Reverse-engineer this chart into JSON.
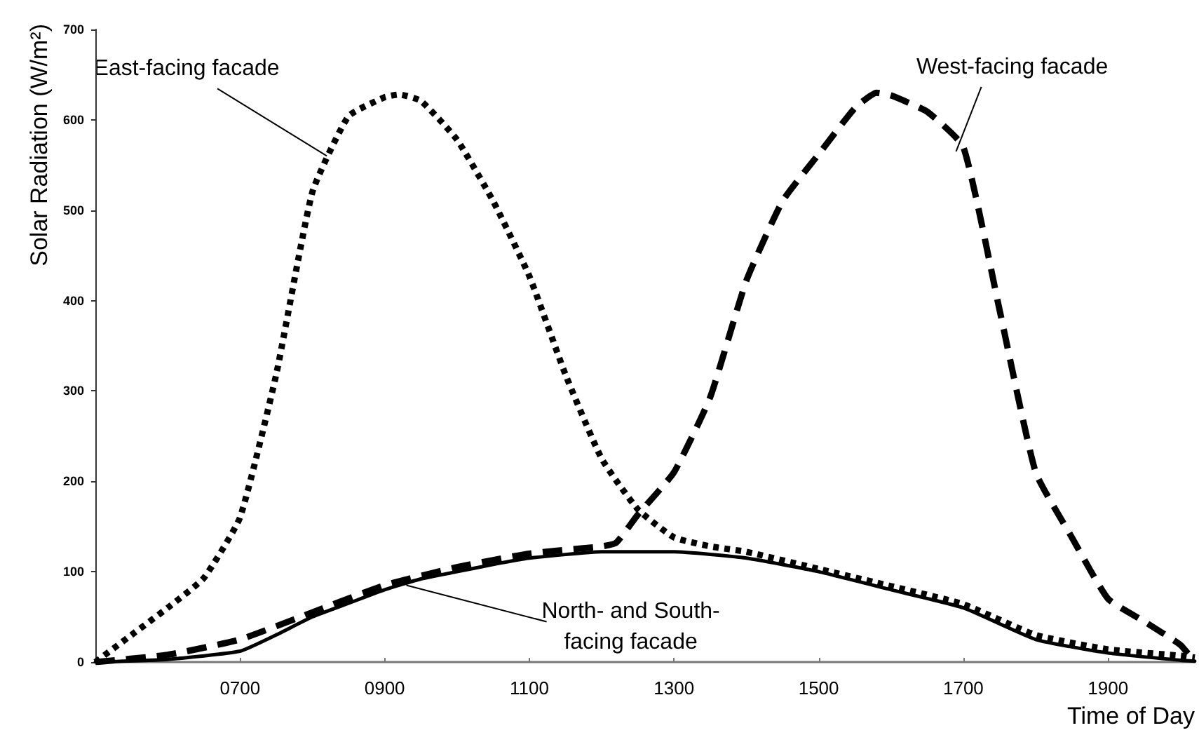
{
  "chart_data": {
    "type": "line",
    "xlabel": "Time of Day",
    "ylabel": "Solar Radiation (W/m²)",
    "xlim": [
      500,
      2020
    ],
    "ylim": [
      0,
      700
    ],
    "xticks": [
      {
        "value": 700,
        "label": "0700"
      },
      {
        "value": 900,
        "label": "0900"
      },
      {
        "value": 1100,
        "label": "1100"
      },
      {
        "value": 1300,
        "label": "1300"
      },
      {
        "value": 1500,
        "label": "1500"
      },
      {
        "value": 1700,
        "label": "1700"
      },
      {
        "value": 1900,
        "label": "1900"
      }
    ],
    "yticks": [
      0,
      100,
      200,
      300,
      400,
      500,
      600,
      700
    ],
    "grid": false,
    "marker": "none",
    "series": [
      {
        "color": "#000000",
        "line_style": "dotted",
        "x": [
          500,
          550,
          600,
          650,
          700,
          750,
          800,
          850,
          900,
          920,
          950,
          1000,
          1050,
          1100,
          1150,
          1200,
          1250,
          1300,
          1350,
          1400,
          1500,
          1600,
          1700,
          1800,
          1900,
          2000,
          2020
        ],
        "values": [
          0,
          30,
          60,
          93,
          160,
          318,
          520,
          604,
          625,
          628,
          621,
          578,
          510,
          427,
          318,
          225,
          169,
          138,
          128,
          122,
          103,
          84,
          64,
          30,
          14,
          7,
          5
        ]
      },
      {
        "color": "#000000",
        "line_style": "dashed",
        "x": [
          500,
          600,
          700,
          800,
          900,
          1000,
          1100,
          1200,
          1220,
          1250,
          1300,
          1350,
          1400,
          1450,
          1500,
          1550,
          1580,
          1600,
          1650,
          1700,
          1750,
          1800,
          1850,
          1900,
          1950,
          2000,
          2020
        ],
        "values": [
          0,
          8,
          25,
          55,
          85,
          105,
          120,
          128,
          132,
          163,
          210,
          293,
          422,
          510,
          562,
          613,
          630,
          627,
          609,
          570,
          390,
          210,
          138,
          70,
          45,
          19,
          0
        ]
      },
      {
        "color": "#000000",
        "line_style": "solid",
        "x": [
          500,
          600,
          700,
          750,
          800,
          850,
          900,
          950,
          1000,
          1050,
          1100,
          1200,
          1300,
          1400,
          1500,
          1600,
          1700,
          1800,
          1900,
          2000,
          2020
        ],
        "values": [
          0,
          3,
          12,
          30,
          50,
          65,
          80,
          92,
          100,
          108,
          115,
          122,
          122,
          115,
          100,
          80,
          60,
          25,
          10,
          2,
          1
        ]
      }
    ],
    "annotations": [
      {
        "text": "East-facing facade",
        "x": 820,
        "y": 560
      },
      {
        "text": "West-facing facade",
        "x": 1690,
        "y": 565
      },
      {
        "text": "North- and South-\nfacing facade",
        "x": 930,
        "y": 85
      }
    ]
  }
}
